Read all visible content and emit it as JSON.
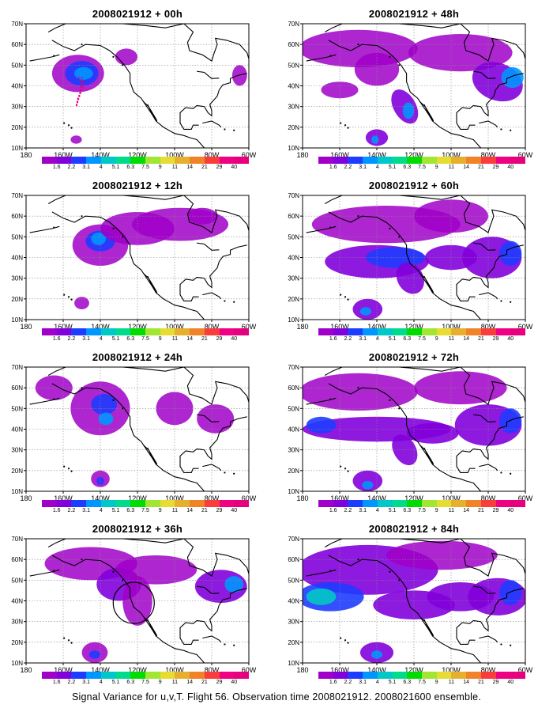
{
  "panels": [
    {
      "title": "2008021912 + 00h",
      "lead": "00h"
    },
    {
      "title": "2008021912 + 48h",
      "lead": "48h"
    },
    {
      "title": "2008021912 + 12h",
      "lead": "12h"
    },
    {
      "title": "2008021912 + 60h",
      "lead": "60h"
    },
    {
      "title": "2008021912 + 24h",
      "lead": "24h"
    },
    {
      "title": "2008021912 + 72h",
      "lead": "72h"
    },
    {
      "title": "2008021912 + 36h",
      "lead": "36h"
    },
    {
      "title": "2008021912 + 84h",
      "lead": "84h"
    }
  ],
  "axes": {
    "lon_labels": [
      "180",
      "160W",
      "140W",
      "120W",
      "100W",
      "80W",
      "60W"
    ],
    "lat_labels": [
      "10N",
      "20N",
      "30N",
      "40N",
      "50N",
      "60N",
      "70N"
    ]
  },
  "colorbar": {
    "levels": [
      "1.6",
      "2.2",
      "3.1",
      "4",
      "5.1",
      "6.3",
      "7.5",
      "9",
      "11",
      "14",
      "21",
      "29",
      "40"
    ],
    "colors": [
      "#a000c8",
      "#8200dc",
      "#1e3cff",
      "#0096ff",
      "#00c8c8",
      "#00dc8c",
      "#00dc00",
      "#a0e632",
      "#e6dc32",
      "#e6af2d",
      "#f08228",
      "#fa3c3c",
      "#f00082"
    ]
  },
  "caption": "Signal Variance for u,v,T. Flight 56. Observation time 2008021912. 2008021600 ensemble."
}
